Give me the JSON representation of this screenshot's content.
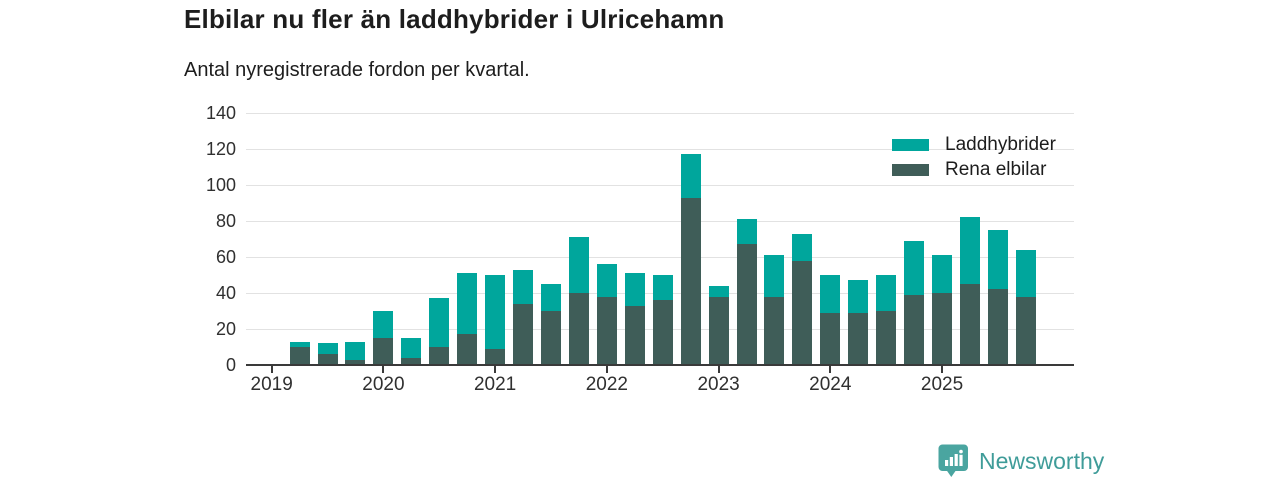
{
  "chart_data": {
    "type": "bar",
    "stacked": true,
    "title": "Elbilar nu fler än laddhybrider i Ulricehamn",
    "subtitle": "Antal nyregistrerade fordon per kvartal.",
    "categories": [
      "2019 K1",
      "2019 K2",
      "2019 K3",
      "2019 K4",
      "2020 K1",
      "2020 K2",
      "2020 K3",
      "2020 K4",
      "2021 K1",
      "2021 K2",
      "2021 K3",
      "2021 K4",
      "2022 K1",
      "2022 K2",
      "2022 K3",
      "2022 K4",
      "2023 K1",
      "2023 K2",
      "2023 K3",
      "2023 K4",
      "2024 K1",
      "2024 K2",
      "2024 K3",
      "2024 K4",
      "2025 K1",
      "2025 K2",
      "2025 K3",
      "2025 K4"
    ],
    "series": [
      {
        "name": "Laddhybrider",
        "color": "#00a69c",
        "values": [
          0,
          3,
          6,
          10,
          15,
          11,
          27,
          34,
          41,
          19,
          15,
          31,
          18,
          18,
          14,
          24,
          6,
          14,
          23,
          15,
          21,
          18,
          20,
          30,
          21,
          37,
          33,
          26
        ]
      },
      {
        "name": "Rena elbilar",
        "color": "#3f5d58",
        "values": [
          0,
          10,
          6,
          3,
          15,
          4,
          10,
          17,
          9,
          34,
          30,
          40,
          38,
          33,
          36,
          93,
          38,
          67,
          38,
          58,
          29,
          29,
          30,
          39,
          40,
          45,
          42,
          38
        ]
      }
    ],
    "stack_order_bottom_to_top": [
      "Rena elbilar",
      "Laddhybrider"
    ],
    "ylim": [
      0,
      140
    ],
    "yticks": [
      0,
      20,
      40,
      60,
      80,
      100,
      120,
      140
    ],
    "xticks": [
      {
        "index": 0,
        "label": "2019"
      },
      {
        "index": 4,
        "label": "2020"
      },
      {
        "index": 8,
        "label": "2021"
      },
      {
        "index": 12,
        "label": "2022"
      },
      {
        "index": 16,
        "label": "2023"
      },
      {
        "index": 20,
        "label": "2024"
      },
      {
        "index": 24,
        "label": "2025"
      }
    ],
    "grid": "horizontal",
    "legend_position": "top-right-inside"
  },
  "legend": {
    "items": [
      {
        "label": "Laddhybrider",
        "color": "#00a69c"
      },
      {
        "label": "Rena elbilar",
        "color": "#3f5d58"
      }
    ]
  },
  "colors": {
    "laddhybrider": "#00a69c",
    "rena_elbilar": "#3f5d58",
    "axis": "#3a3a3a",
    "grid": "#e2e2e2",
    "text": "#1d1d1d",
    "brand": "#3f9c99",
    "brand_icon": "#4aa5a0"
  },
  "footer": {
    "brand": "Newsworthy"
  }
}
